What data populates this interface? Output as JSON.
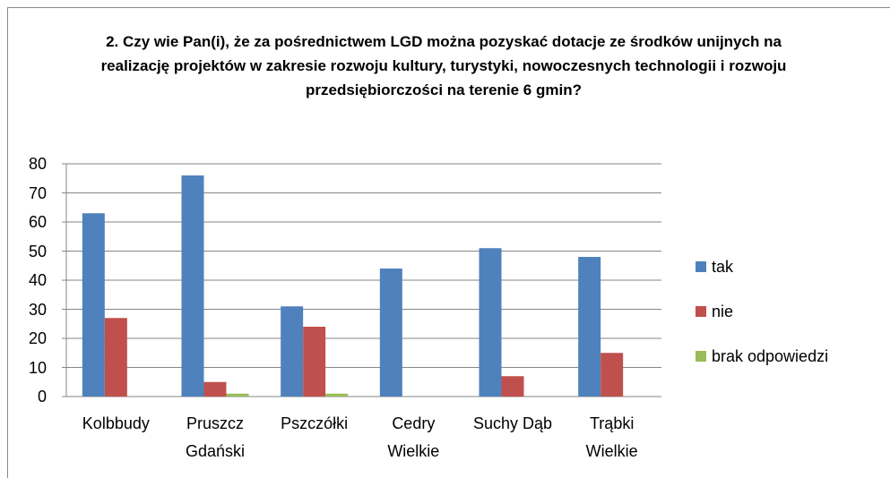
{
  "chart_data": {
    "type": "bar",
    "title": "2. Czy wie Pan(i), że za pośrednictwem LGD można pozyskać dotacje ze środków unijnych na realizację projektów w zakresie rozwoju kultury, turystyki, nowoczesnych technologii i rozwoju przedsiębiorczości na terenie 6 gmin?",
    "categories": [
      "Kolbbudy",
      "Pruszcz Gdański",
      "Pszczółki",
      "Cedry Wielkie",
      "Suchy Dąb",
      "Trąbki Wielkie"
    ],
    "series": [
      {
        "name": "tak",
        "color": "#4f81bd",
        "values": [
          63,
          76,
          31,
          44,
          51,
          48
        ]
      },
      {
        "name": "nie",
        "color": "#c0504d",
        "values": [
          27,
          5,
          24,
          0,
          7,
          15
        ]
      },
      {
        "name": "brak odpowiedzi",
        "color": "#9bbb59",
        "values": [
          0,
          1,
          1,
          0,
          0,
          0
        ]
      }
    ],
    "ylim": [
      0,
      80
    ],
    "yticks": [
      0,
      10,
      20,
      30,
      40,
      50,
      60,
      70,
      80
    ],
    "grid": true,
    "legend": "right"
  }
}
